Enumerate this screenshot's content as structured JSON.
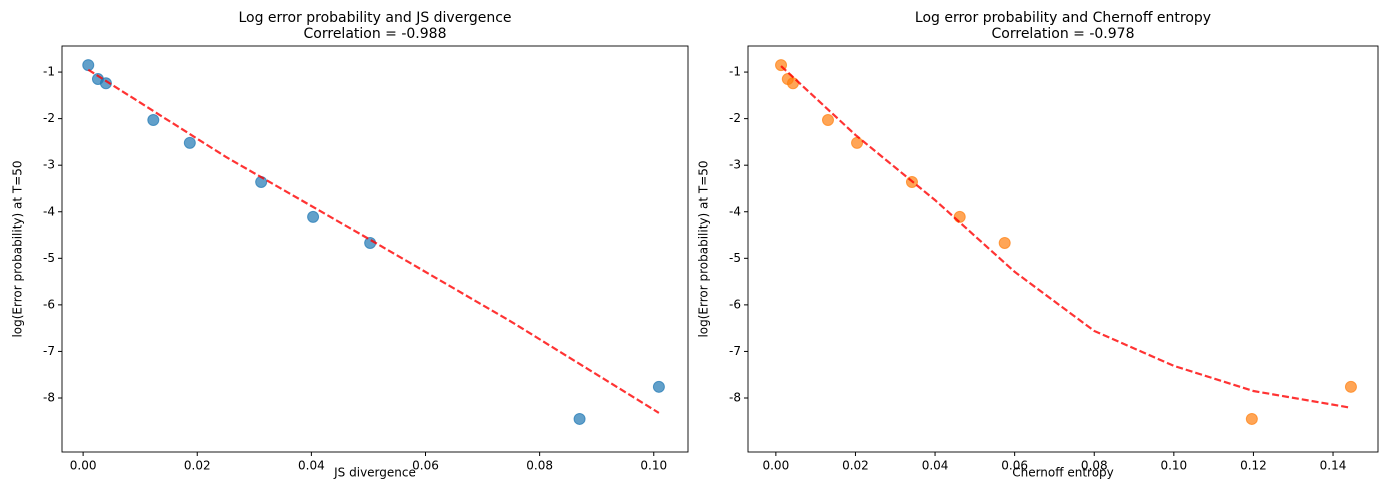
{
  "chart_data": [
    {
      "type": "scatter",
      "title": "Log error probability and JS divergence",
      "subtitle": "Correlation = -0.988",
      "xlabel": "JS divergence",
      "ylabel": "log(Error probability) at T=50",
      "xlim": [
        -0.0037,
        0.106
      ],
      "ylim": [
        -9.16,
        -0.44
      ],
      "xticks": [
        {
          "value": 0,
          "label": "0.00"
        },
        {
          "value": 0.02,
          "label": "0.02"
        },
        {
          "value": 0.04,
          "label": "0.04"
        },
        {
          "value": 0.06,
          "label": "0.06"
        },
        {
          "value": 0.08,
          "label": "0.08"
        },
        {
          "value": 0.1,
          "label": "0.10"
        }
      ],
      "yticks": [
        -1,
        -2,
        -3,
        -4,
        -5,
        -6,
        -7,
        -8
      ],
      "series": [
        {
          "type": "scatter",
          "color": "#1f77b4",
          "x": [
            0.0009,
            0.0026,
            0.004,
            0.0123,
            0.0187,
            0.0312,
            0.0403,
            0.0503,
            0.087,
            0.1009
          ],
          "values": [
            -0.85,
            -1.15,
            -1.24,
            -2.03,
            -2.52,
            -3.36,
            -4.11,
            -4.67,
            -8.45,
            -7.76
          ]
        },
        {
          "type": "line",
          "color": "#ff0000",
          "dashed": true,
          "x": [
            0.0009,
            0.025,
            0.05,
            0.075,
            0.1009
          ],
          "values": [
            -0.95,
            -2.82,
            -4.58,
            -6.36,
            -8.32
          ]
        }
      ]
    },
    {
      "type": "scatter",
      "title": "Log error probability and Chernoff entropy",
      "subtitle": "Correlation = -0.978",
      "xlabel": "Chernoff entropy",
      "ylabel": "log(Error probability) at T=50",
      "xlim": [
        -0.007,
        0.1513
      ],
      "ylim": [
        -9.16,
        -0.44
      ],
      "xticks": [
        {
          "value": 0,
          "label": "0.00"
        },
        {
          "value": 0.02,
          "label": "0.02"
        },
        {
          "value": 0.04,
          "label": "0.04"
        },
        {
          "value": 0.06,
          "label": "0.06"
        },
        {
          "value": 0.08,
          "label": "0.08"
        },
        {
          "value": 0.1,
          "label": "0.10"
        },
        {
          "value": 0.12,
          "label": "0.12"
        },
        {
          "value": 0.14,
          "label": "0.14"
        }
      ],
      "yticks": [
        -1,
        -2,
        -3,
        -4,
        -5,
        -6,
        -7,
        -8
      ],
      "series": [
        {
          "type": "scatter",
          "color": "#ff7f0e",
          "x": [
            0.0013,
            0.003,
            0.0043,
            0.0131,
            0.0204,
            0.0342,
            0.0462,
            0.0575,
            0.1196,
            0.1445
          ],
          "values": [
            -0.85,
            -1.15,
            -1.24,
            -2.03,
            -2.52,
            -3.36,
            -4.11,
            -4.67,
            -8.45,
            -7.76
          ]
        },
        {
          "type": "line",
          "color": "#ff0000",
          "dashed": true,
          "x": [
            0.0013,
            0.02,
            0.04,
            0.06,
            0.08,
            0.1,
            0.12,
            0.1445
          ],
          "values": [
            -0.87,
            -2.35,
            -3.75,
            -5.29,
            -6.56,
            -7.31,
            -7.85,
            -8.21
          ]
        }
      ]
    }
  ]
}
